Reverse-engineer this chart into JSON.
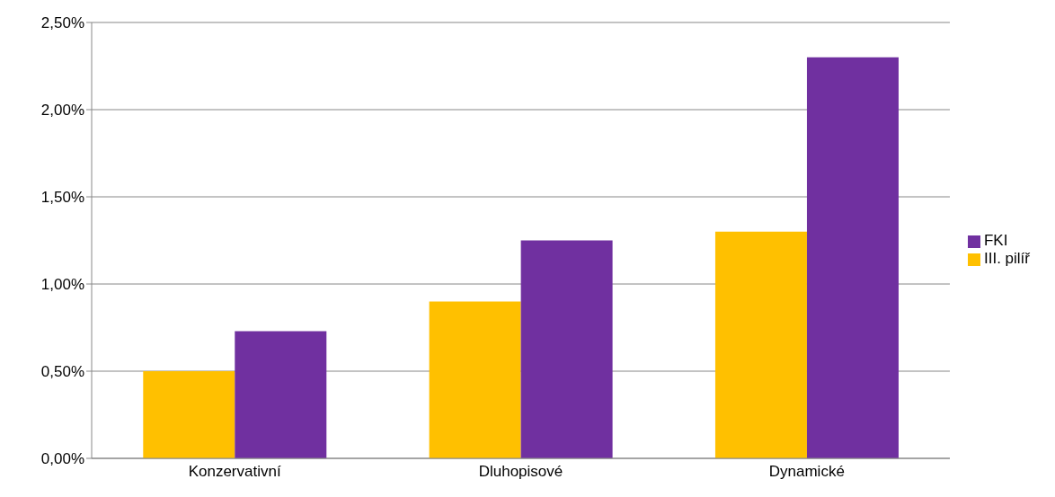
{
  "chart_data": {
    "type": "bar",
    "categories": [
      "Konzervativní",
      "Dluhopisové",
      "Dynamické"
    ],
    "series": [
      {
        "name": "III. pilíř",
        "color": "#ffc000",
        "values": [
          0.5,
          0.9,
          1.3
        ]
      },
      {
        "name": "FKI",
        "color": "#7030a0",
        "values": [
          0.73,
          1.25,
          2.3
        ]
      }
    ],
    "ylim": [
      0,
      2.5
    ],
    "yticks": [
      {
        "value": 0,
        "label": "0,00%"
      },
      {
        "value": 0.5,
        "label": "0,50%"
      },
      {
        "value": 1,
        "label": "1,00%"
      },
      {
        "value": 1.5,
        "label": "1,50%"
      },
      {
        "value": 2,
        "label": "2,00%"
      },
      {
        "value": 2.5,
        "label": "2,50%"
      }
    ],
    "grid": "y",
    "legend": "right"
  }
}
